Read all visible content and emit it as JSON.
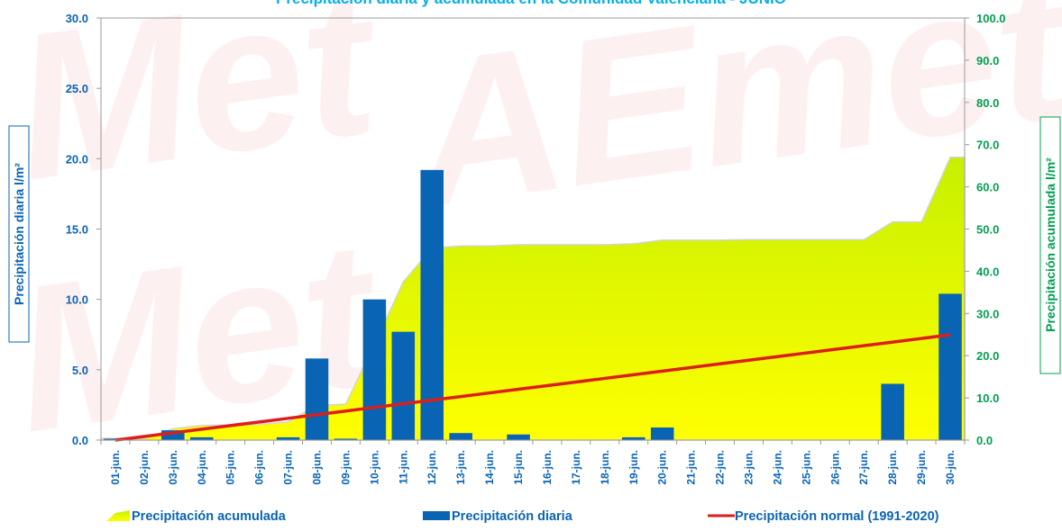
{
  "chart_data": {
    "type": "bar",
    "title": "Precipitación diaria y acumulada en la Comunidad Valenciana - JUNIO",
    "ylabel_left": "Precipitación diaria l/m²",
    "ylabel_right": "Precipitación acumulada l/m²",
    "ylim_left": [
      0,
      30
    ],
    "ylim_right": [
      0,
      100
    ],
    "yticks_left": [
      "0.0",
      "5.0",
      "10.0",
      "15.0",
      "20.0",
      "25.0",
      "30.0"
    ],
    "yticks_right": [
      "0.0",
      "10.0",
      "20.0",
      "30.0",
      "40.0",
      "50.0",
      "60.0",
      "70.0",
      "80.0",
      "90.0",
      "100.0"
    ],
    "categories": [
      "01-jun.",
      "02-jun.",
      "03-jun.",
      "04-jun.",
      "05-jun.",
      "06-jun.",
      "07-jun.",
      "08-jun.",
      "09-jun.",
      "10-jun.",
      "11-jun.",
      "12-jun.",
      "13-jun.",
      "14-jun.",
      "15-jun.",
      "16-jun.",
      "17-jun.",
      "18-jun.",
      "19-jun.",
      "20-jun.",
      "21-jun.",
      "22-jun.",
      "23-jun.",
      "24-jun.",
      "25-jun.",
      "26-jun.",
      "27-jun.",
      "28-jun.",
      "29-jun.",
      "30-jun."
    ],
    "grid": false,
    "legend_position": "bottom",
    "series": [
      {
        "name": "Precipitación acumulada",
        "type": "area",
        "axis": "right",
        "color": "#e6ff00",
        "values": [
          0.4,
          0.4,
          2.7,
          3.5,
          3.6,
          3.7,
          4.3,
          8.2,
          8.5,
          22.7,
          37.5,
          45.5,
          46.0,
          46.0,
          46.3,
          46.3,
          46.3,
          46.3,
          46.5,
          47.4,
          47.4,
          47.4,
          47.5,
          47.5,
          47.5,
          47.5,
          47.5,
          51.7,
          51.7,
          67.0
        ]
      },
      {
        "name": "Precipitación diaria",
        "type": "bar",
        "axis": "left",
        "color": "#0a64b4",
        "values": [
          0.1,
          0.0,
          0.7,
          0.2,
          0.0,
          0.0,
          0.2,
          5.8,
          0.1,
          10.0,
          7.7,
          19.2,
          0.5,
          0.0,
          0.4,
          0.0,
          0.0,
          0.0,
          0.2,
          0.9,
          0.0,
          0.0,
          0.0,
          0.0,
          0.0,
          0.0,
          0.0,
          4.0,
          0.0,
          10.4
        ]
      },
      {
        "name": "Precipitación normal (1991-2020)",
        "type": "line",
        "axis": "right",
        "color": "#dc1e1e",
        "values": [
          0.0,
          0.86,
          1.72,
          2.58,
          3.44,
          4.3,
          5.16,
          6.02,
          6.88,
          7.74,
          8.6,
          9.46,
          10.32,
          11.18,
          12.04,
          12.9,
          13.76,
          14.62,
          15.48,
          16.34,
          17.2,
          18.06,
          18.92,
          19.78,
          20.64,
          21.5,
          22.36,
          23.22,
          24.08,
          24.94
        ]
      }
    ]
  },
  "colors": {
    "title": "#00b0f0",
    "left_axis": "#0a64b4",
    "right_axis": "#00a050",
    "acumulada": "#e6ff00",
    "diaria": "#0a64b4",
    "normal": "#dc1e1e"
  }
}
